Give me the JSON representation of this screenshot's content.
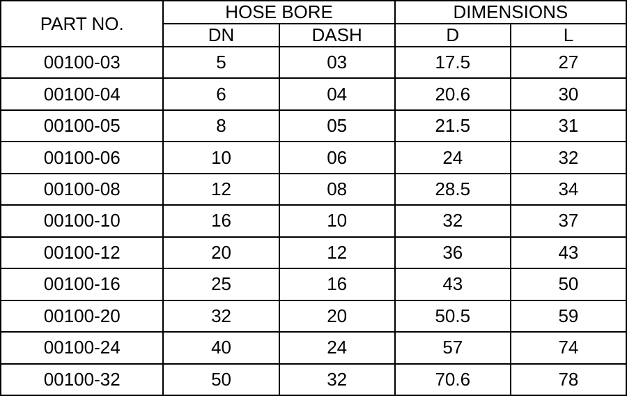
{
  "table": {
    "type": "table",
    "background_color": "#ffffff",
    "border_color": "#000000",
    "text_color": "#000000",
    "font_family": "Arial",
    "font_size_pt": 20,
    "header": {
      "part_no": "PART NO.",
      "hose_bore": "HOSE BORE",
      "dimensions": "DIMENSIONS",
      "dn": "DN",
      "dash": "DASH",
      "d": "D",
      "l": "L"
    },
    "columns": [
      "PART NO.",
      "DN",
      "DASH",
      "D",
      "L"
    ],
    "column_widths_pct": [
      26,
      18.5,
      18.5,
      18.5,
      18.5
    ],
    "rows": [
      {
        "part_no": "00100-03",
        "dn": "5",
        "dash": "03",
        "d": "17.5",
        "l": "27"
      },
      {
        "part_no": "00100-04",
        "dn": "6",
        "dash": "04",
        "d": "20.6",
        "l": "30"
      },
      {
        "part_no": "00100-05",
        "dn": "8",
        "dash": "05",
        "d": "21.5",
        "l": "31"
      },
      {
        "part_no": "00100-06",
        "dn": "10",
        "dash": "06",
        "d": "24",
        "l": "32"
      },
      {
        "part_no": "00100-08",
        "dn": "12",
        "dash": "08",
        "d": "28.5",
        "l": "34"
      },
      {
        "part_no": "00100-10",
        "dn": "16",
        "dash": "10",
        "d": "32",
        "l": "37"
      },
      {
        "part_no": "00100-12",
        "dn": "20",
        "dash": "12",
        "d": "36",
        "l": "43"
      },
      {
        "part_no": "00100-16",
        "dn": "25",
        "dash": "16",
        "d": "43",
        "l": "50"
      },
      {
        "part_no": "00100-20",
        "dn": "32",
        "dash": "20",
        "d": "50.5",
        "l": "59"
      },
      {
        "part_no": "00100-24",
        "dn": "40",
        "dash": "24",
        "d": "57",
        "l": "74"
      },
      {
        "part_no": "00100-32",
        "dn": "50",
        "dash": "32",
        "d": "70.6",
        "l": "78"
      }
    ]
  }
}
